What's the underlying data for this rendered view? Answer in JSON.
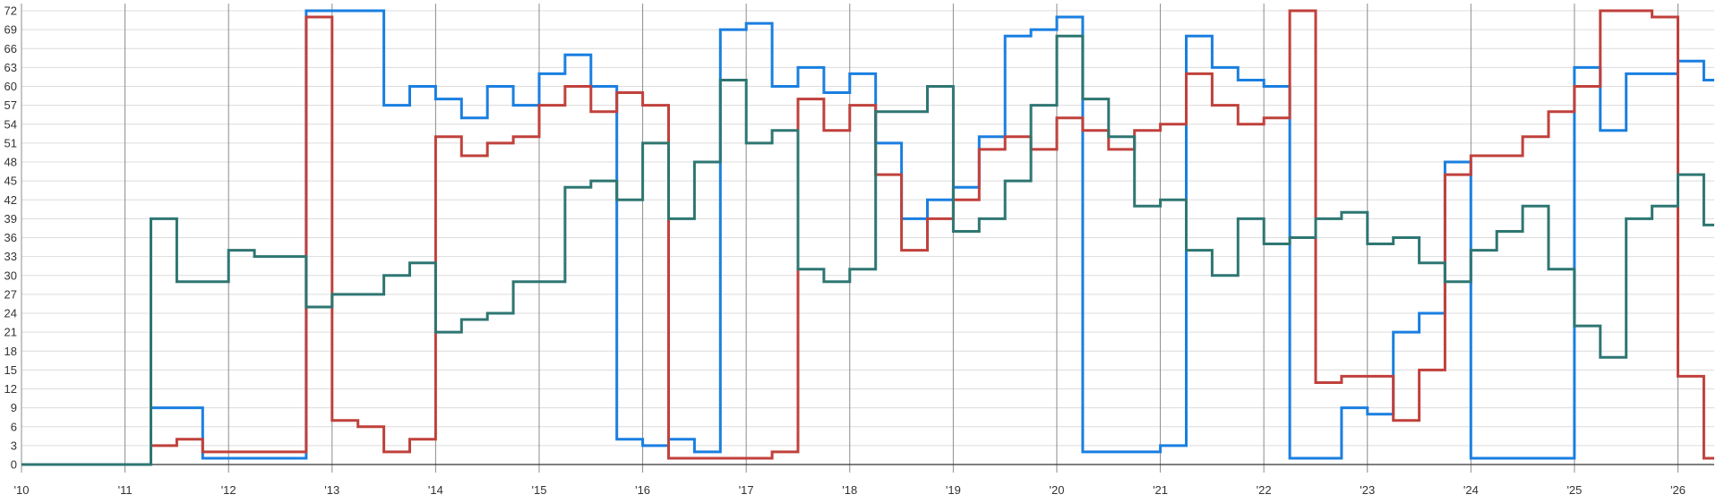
{
  "chart_data": {
    "type": "line",
    "step": true,
    "grid": true,
    "xlim": [
      2010.0,
      2026.35
    ],
    "ylim": [
      0,
      72
    ],
    "xticks": [
      {
        "v": 2010,
        "label": "'10"
      },
      {
        "v": 2011,
        "label": "'11"
      },
      {
        "v": 2012,
        "label": "'12"
      },
      {
        "v": 2013,
        "label": "'13"
      },
      {
        "v": 2014,
        "label": "'14"
      },
      {
        "v": 2015,
        "label": "'15"
      },
      {
        "v": 2016,
        "label": "'16"
      },
      {
        "v": 2017,
        "label": "'17"
      },
      {
        "v": 2018,
        "label": "'18"
      },
      {
        "v": 2019,
        "label": "'19"
      },
      {
        "v": 2020,
        "label": "'20"
      },
      {
        "v": 2021,
        "label": "'21"
      },
      {
        "v": 2022,
        "label": "'22"
      },
      {
        "v": 2023,
        "label": "'23"
      },
      {
        "v": 2024,
        "label": "'24"
      },
      {
        "v": 2025,
        "label": "'25"
      },
      {
        "v": 2026,
        "label": "'26"
      }
    ],
    "yticks": [
      0,
      3,
      6,
      9,
      12,
      15,
      18,
      21,
      24,
      27,
      30,
      33,
      36,
      39,
      42,
      45,
      48,
      51,
      54,
      57,
      60,
      63,
      66,
      69,
      72
    ],
    "series": [
      {
        "color": "#1a7fe0",
        "points": [
          [
            2010.0,
            0
          ],
          [
            2011.25,
            9
          ],
          [
            2011.75,
            1
          ],
          [
            2012.75,
            72
          ],
          [
            2013.5,
            57
          ],
          [
            2013.75,
            60
          ],
          [
            2014.0,
            58
          ],
          [
            2014.25,
            55
          ],
          [
            2014.5,
            60
          ],
          [
            2014.75,
            57
          ],
          [
            2015.0,
            62
          ],
          [
            2015.25,
            65
          ],
          [
            2015.5,
            60
          ],
          [
            2015.75,
            4
          ],
          [
            2016.0,
            3
          ],
          [
            2016.25,
            4
          ],
          [
            2016.5,
            2
          ],
          [
            2016.75,
            69
          ],
          [
            2017.0,
            70
          ],
          [
            2017.25,
            60
          ],
          [
            2017.5,
            63
          ],
          [
            2017.75,
            59
          ],
          [
            2018.0,
            62
          ],
          [
            2018.25,
            51
          ],
          [
            2018.5,
            39
          ],
          [
            2018.75,
            42
          ],
          [
            2019.0,
            44
          ],
          [
            2019.25,
            52
          ],
          [
            2019.5,
            68
          ],
          [
            2019.75,
            69
          ],
          [
            2020.0,
            71
          ],
          [
            2020.25,
            2
          ],
          [
            2021.0,
            3
          ],
          [
            2021.25,
            68
          ],
          [
            2021.5,
            63
          ],
          [
            2021.75,
            61
          ],
          [
            2022.0,
            60
          ],
          [
            2022.25,
            1
          ],
          [
            2022.75,
            9
          ],
          [
            2023.0,
            8
          ],
          [
            2023.25,
            21
          ],
          [
            2023.5,
            24
          ],
          [
            2023.75,
            48
          ],
          [
            2024.0,
            1
          ],
          [
            2025.0,
            63
          ],
          [
            2025.25,
            53
          ],
          [
            2025.5,
            62
          ],
          [
            2026.0,
            64
          ],
          [
            2026.25,
            61
          ],
          [
            2026.35,
            61
          ]
        ]
      },
      {
        "color": "#c0413c",
        "points": [
          [
            2010.0,
            0
          ],
          [
            2011.25,
            3
          ],
          [
            2011.5,
            4
          ],
          [
            2011.75,
            2
          ],
          [
            2012.75,
            71
          ],
          [
            2013.0,
            7
          ],
          [
            2013.25,
            6
          ],
          [
            2013.5,
            2
          ],
          [
            2013.75,
            4
          ],
          [
            2014.0,
            52
          ],
          [
            2014.25,
            49
          ],
          [
            2014.5,
            51
          ],
          [
            2014.75,
            52
          ],
          [
            2015.0,
            57
          ],
          [
            2015.25,
            60
          ],
          [
            2015.5,
            56
          ],
          [
            2015.75,
            59
          ],
          [
            2016.0,
            57
          ],
          [
            2016.25,
            1
          ],
          [
            2017.25,
            2
          ],
          [
            2017.5,
            58
          ],
          [
            2017.75,
            53
          ],
          [
            2018.0,
            57
          ],
          [
            2018.25,
            46
          ],
          [
            2018.5,
            34
          ],
          [
            2018.75,
            39
          ],
          [
            2019.0,
            42
          ],
          [
            2019.25,
            50
          ],
          [
            2019.5,
            52
          ],
          [
            2019.75,
            50
          ],
          [
            2020.0,
            55
          ],
          [
            2020.25,
            53
          ],
          [
            2020.5,
            50
          ],
          [
            2020.75,
            53
          ],
          [
            2021.0,
            54
          ],
          [
            2021.25,
            62
          ],
          [
            2021.5,
            57
          ],
          [
            2021.75,
            54
          ],
          [
            2022.0,
            55
          ],
          [
            2022.25,
            72
          ],
          [
            2022.5,
            13
          ],
          [
            2022.75,
            14
          ],
          [
            2023.25,
            7
          ],
          [
            2023.5,
            15
          ],
          [
            2023.75,
            46
          ],
          [
            2024.0,
            49
          ],
          [
            2024.5,
            52
          ],
          [
            2024.75,
            56
          ],
          [
            2025.0,
            60
          ],
          [
            2025.25,
            72
          ],
          [
            2025.75,
            71
          ],
          [
            2026.0,
            14
          ],
          [
            2026.25,
            1
          ],
          [
            2026.35,
            1
          ]
        ]
      },
      {
        "color": "#2e7672",
        "points": [
          [
            2010.0,
            0
          ],
          [
            2011.25,
            39
          ],
          [
            2011.5,
            29
          ],
          [
            2012.0,
            34
          ],
          [
            2012.25,
            33
          ],
          [
            2012.75,
            25
          ],
          [
            2013.0,
            27
          ],
          [
            2013.5,
            30
          ],
          [
            2013.75,
            32
          ],
          [
            2014.0,
            21
          ],
          [
            2014.25,
            23
          ],
          [
            2014.5,
            24
          ],
          [
            2014.75,
            29
          ],
          [
            2015.25,
            44
          ],
          [
            2015.5,
            45
          ],
          [
            2015.75,
            42
          ],
          [
            2016.0,
            51
          ],
          [
            2016.25,
            39
          ],
          [
            2016.5,
            48
          ],
          [
            2016.75,
            61
          ],
          [
            2017.0,
            51
          ],
          [
            2017.25,
            53
          ],
          [
            2017.5,
            31
          ],
          [
            2017.75,
            29
          ],
          [
            2018.0,
            31
          ],
          [
            2018.25,
            56
          ],
          [
            2018.75,
            60
          ],
          [
            2019.0,
            37
          ],
          [
            2019.25,
            39
          ],
          [
            2019.5,
            45
          ],
          [
            2019.75,
            57
          ],
          [
            2020.0,
            68
          ],
          [
            2020.25,
            58
          ],
          [
            2020.5,
            52
          ],
          [
            2020.75,
            41
          ],
          [
            2021.0,
            42
          ],
          [
            2021.25,
            34
          ],
          [
            2021.5,
            30
          ],
          [
            2021.75,
            39
          ],
          [
            2022.0,
            35
          ],
          [
            2022.25,
            36
          ],
          [
            2022.5,
            39
          ],
          [
            2022.75,
            40
          ],
          [
            2023.0,
            35
          ],
          [
            2023.25,
            36
          ],
          [
            2023.5,
            32
          ],
          [
            2023.75,
            29
          ],
          [
            2024.0,
            34
          ],
          [
            2024.25,
            37
          ],
          [
            2024.5,
            41
          ],
          [
            2024.75,
            31
          ],
          [
            2025.0,
            22
          ],
          [
            2025.25,
            17
          ],
          [
            2025.5,
            39
          ],
          [
            2025.75,
            41
          ],
          [
            2026.0,
            46
          ],
          [
            2026.25,
            38
          ],
          [
            2026.35,
            38
          ]
        ]
      }
    ]
  }
}
